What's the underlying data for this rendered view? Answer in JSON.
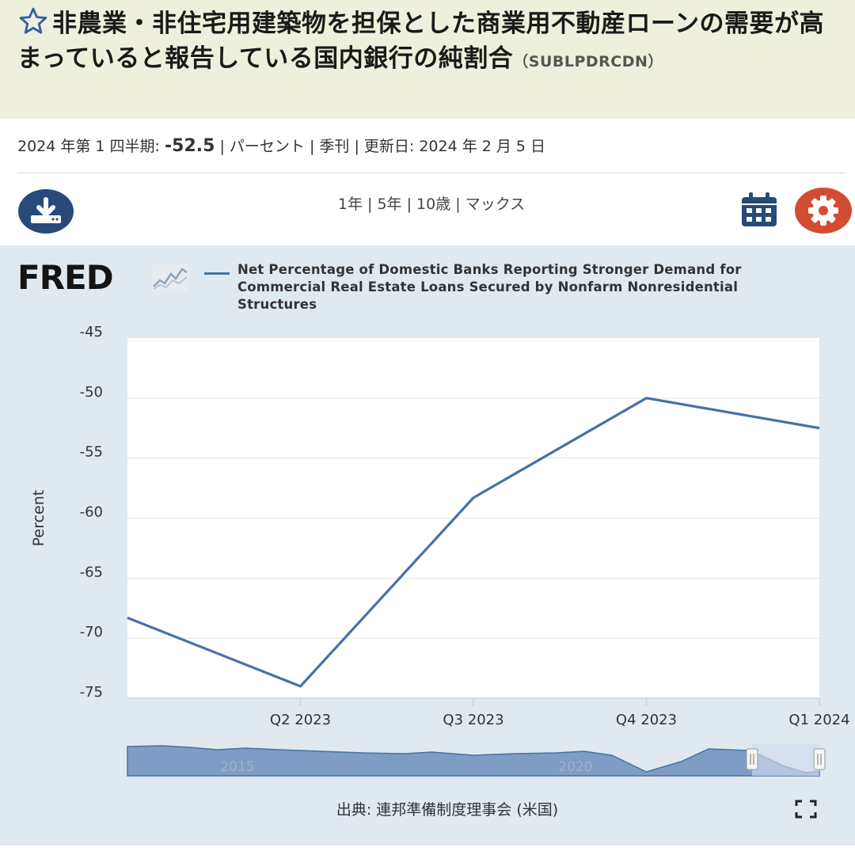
{
  "header": {
    "title": "非農業・非住宅用建築物を担保とした商業用不動産ローンの需要が高まっていると報告している国内銀行の純割合",
    "series_id": "（SUBLPDRCDN）"
  },
  "meta": {
    "period_label": "2024 年第 1 四半期:",
    "value": "-52.5",
    "units": "| パーセント | 季刊 | 更新日: 2024 年 2 月 5 日"
  },
  "toolbar": {
    "ranges": [
      "1年",
      "| 5年",
      "| 10歳",
      "| マックス"
    ],
    "download_icon": "download-icon",
    "calendar_icon": "calendar-icon",
    "settings_icon": "gear-icon"
  },
  "logo": {
    "text": "FRED"
  },
  "colors": {
    "series": "#4572a7",
    "title_bg": "#eff0dc",
    "panel_bg": "#e1e9f0",
    "download": "#274a7a",
    "settings": "#d24c33"
  },
  "chart_data": {
    "type": "line",
    "title": "",
    "xlabel": "",
    "ylabel": "Percent",
    "series": [
      {
        "name": "Net Percentage of Domestic Banks Reporting Stronger Demand for Commercial Real Estate Loans Secured by Nonfarm Nonresidential Structures",
        "x": [
          "Q1 2023",
          "Q2 2023",
          "Q3 2023",
          "Q4 2023",
          "Q1 2024"
        ],
        "values": [
          -68.3,
          -74.0,
          -58.3,
          -50.0,
          -52.5
        ]
      }
    ],
    "x_ticks": [
      "Q2 2023",
      "Q3 2023",
      "Q4 2023",
      "Q1 2024"
    ],
    "y_ticks": [
      -45,
      -50,
      -55,
      -60,
      -65,
      -70,
      -75
    ],
    "ylim": [
      -75,
      -45
    ],
    "grid": true,
    "legend": "top",
    "navigator_labels": [
      "2015",
      "2020"
    ]
  },
  "footer": {
    "source": "出典: 連邦準備制度理事会 (米国)",
    "fullscreen_icon": "fullscreen-icon"
  }
}
